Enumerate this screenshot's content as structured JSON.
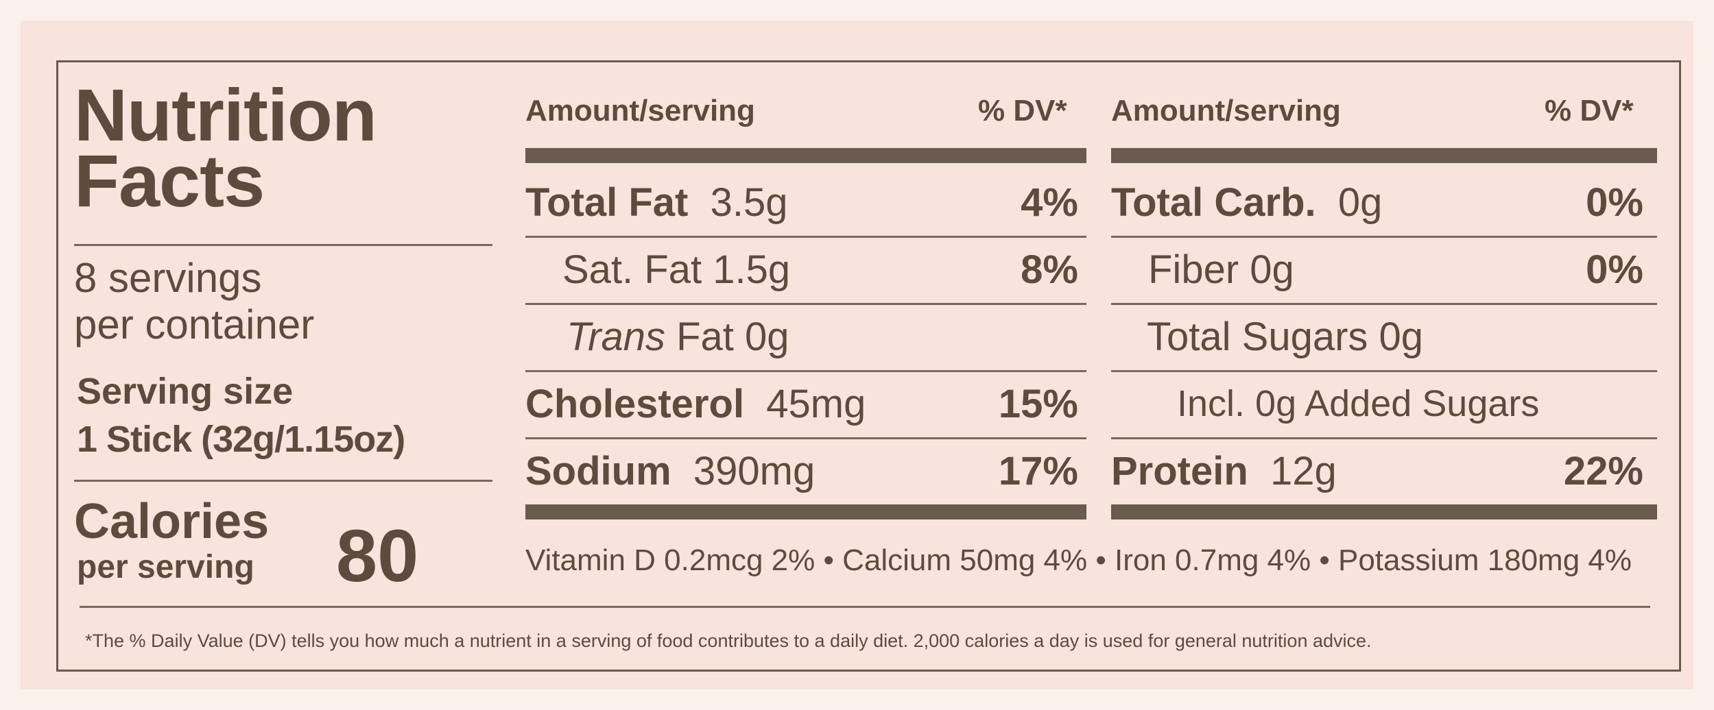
{
  "title_line1": "Nutrition",
  "title_line2": "Facts",
  "servings_line1": "8 servings",
  "servings_line2": "per container",
  "serving_size_label": "Serving size",
  "serving_size_value": "1 Stick (32g/1.15oz)",
  "calories_label": "Calories",
  "calories_sub": "per serving",
  "calories_value": "80",
  "left": {
    "header_amount": "Amount/serving",
    "header_dv": "% DV*",
    "total_fat_label": "Total Fat",
    "total_fat_amount": "3.5g",
    "total_fat_dv": "4%",
    "sat_fat_label": "Sat. Fat 1.5g",
    "sat_fat_dv": "8%",
    "trans_fat_italic": "Trans",
    "trans_fat_rest": " Fat 0g",
    "cholesterol_label": "Cholesterol",
    "cholesterol_amount": "45mg",
    "cholesterol_dv": "15%",
    "sodium_label": "Sodium",
    "sodium_amount": "390mg",
    "sodium_dv": "17%"
  },
  "right": {
    "header_amount": "Amount/serving",
    "header_dv": "% DV*",
    "carb_label": "Total Carb.",
    "carb_amount": "0g",
    "carb_dv": "0%",
    "fiber_label": "Fiber 0g",
    "fiber_dv": "0%",
    "sugars_label": "Total Sugars 0g",
    "added_sugars_label": "Incl. 0g Added Sugars",
    "protein_label": "Protein",
    "protein_amount": "12g",
    "protein_dv": "22%"
  },
  "vitamins": "Vitamin D 0.2mcg 2% • Calcium 50mg 4% • Iron 0.7mg 4% • Potassium 180mg 4%",
  "footnote_star": "*",
  "footnote": "The % Daily Value (DV) tells you how much a nutrient in a serving of food contributes to a daily diet. 2,000 calories a day is used for general nutrition advice.",
  "colors": {
    "ink": "#5e4b3e",
    "rule": "#6b5a4e",
    "background": "#f8e4dc"
  }
}
